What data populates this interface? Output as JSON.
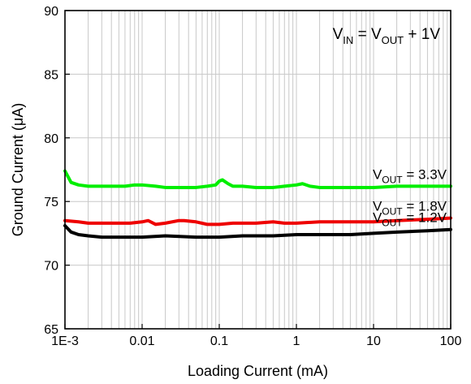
{
  "chart_data": {
    "type": "line",
    "xlabel": "Loading Current (mA)",
    "ylabel_prefix": "Ground Current (",
    "ylabel_mu": "μ",
    "ylabel_suffix": "A)",
    "x_scale": "log",
    "xlim": [
      0.001,
      100
    ],
    "ylim": [
      65,
      90
    ],
    "grid": true,
    "x_ticks": [
      0.001,
      0.01,
      0.1,
      1,
      10,
      100
    ],
    "x_tick_labels": [
      "1E-3",
      "0.01",
      "0.1",
      "1",
      "10",
      "100"
    ],
    "y_ticks": [
      65,
      70,
      75,
      80,
      85,
      90
    ],
    "y_tick_labels": [
      "65",
      "70",
      "75",
      "80",
      "85",
      "90"
    ],
    "condition": {
      "v1": "V",
      "v1_sub": "IN",
      "eq": " = ",
      "v2": "V",
      "v2_sub": "OUT",
      "tail": " + 1V"
    },
    "series": [
      {
        "label_main": "V",
        "label_sub": "OUT",
        "label_tail": " = 3.3V",
        "color": "#00ee00",
        "x": [
          0.001,
          0.0012,
          0.0015,
          0.002,
          0.003,
          0.004,
          0.006,
          0.008,
          0.01,
          0.015,
          0.02,
          0.03,
          0.05,
          0.07,
          0.09,
          0.1,
          0.11,
          0.13,
          0.15,
          0.2,
          0.3,
          0.5,
          0.7,
          1,
          1.2,
          1.5,
          2,
          3,
          5,
          10,
          20,
          50,
          100
        ],
        "y": [
          77.4,
          76.5,
          76.3,
          76.2,
          76.2,
          76.2,
          76.2,
          76.3,
          76.3,
          76.2,
          76.1,
          76.1,
          76.1,
          76.2,
          76.3,
          76.6,
          76.7,
          76.4,
          76.2,
          76.2,
          76.1,
          76.1,
          76.2,
          76.3,
          76.4,
          76.2,
          76.1,
          76.1,
          76.1,
          76.1,
          76.2,
          76.2,
          76.2
        ]
      },
      {
        "label_main": "V",
        "label_sub": "OUT",
        "label_tail": " = 1.8V",
        "color": "#ee0000",
        "x": [
          0.001,
          0.0015,
          0.002,
          0.003,
          0.005,
          0.007,
          0.01,
          0.012,
          0.015,
          0.02,
          0.03,
          0.035,
          0.05,
          0.07,
          0.1,
          0.15,
          0.2,
          0.3,
          0.5,
          0.7,
          1,
          2,
          3,
          5,
          10,
          20,
          50,
          100
        ],
        "y": [
          73.5,
          73.4,
          73.3,
          73.3,
          73.3,
          73.3,
          73.4,
          73.5,
          73.2,
          73.3,
          73.5,
          73.5,
          73.4,
          73.2,
          73.2,
          73.3,
          73.3,
          73.3,
          73.4,
          73.3,
          73.3,
          73.4,
          73.4,
          73.4,
          73.4,
          73.5,
          73.6,
          73.7
        ]
      },
      {
        "label_main": "V",
        "label_sub": "OUT",
        "label_tail": " = 1.2V",
        "color": "#000000",
        "x": [
          0.001,
          0.0012,
          0.0015,
          0.002,
          0.003,
          0.005,
          0.01,
          0.02,
          0.05,
          0.1,
          0.2,
          0.5,
          1,
          2,
          5,
          10,
          20,
          50,
          100
        ],
        "y": [
          73.1,
          72.6,
          72.4,
          72.3,
          72.2,
          72.2,
          72.2,
          72.3,
          72.2,
          72.2,
          72.3,
          72.3,
          72.4,
          72.4,
          72.4,
          72.5,
          72.6,
          72.7,
          72.8
        ]
      }
    ]
  }
}
